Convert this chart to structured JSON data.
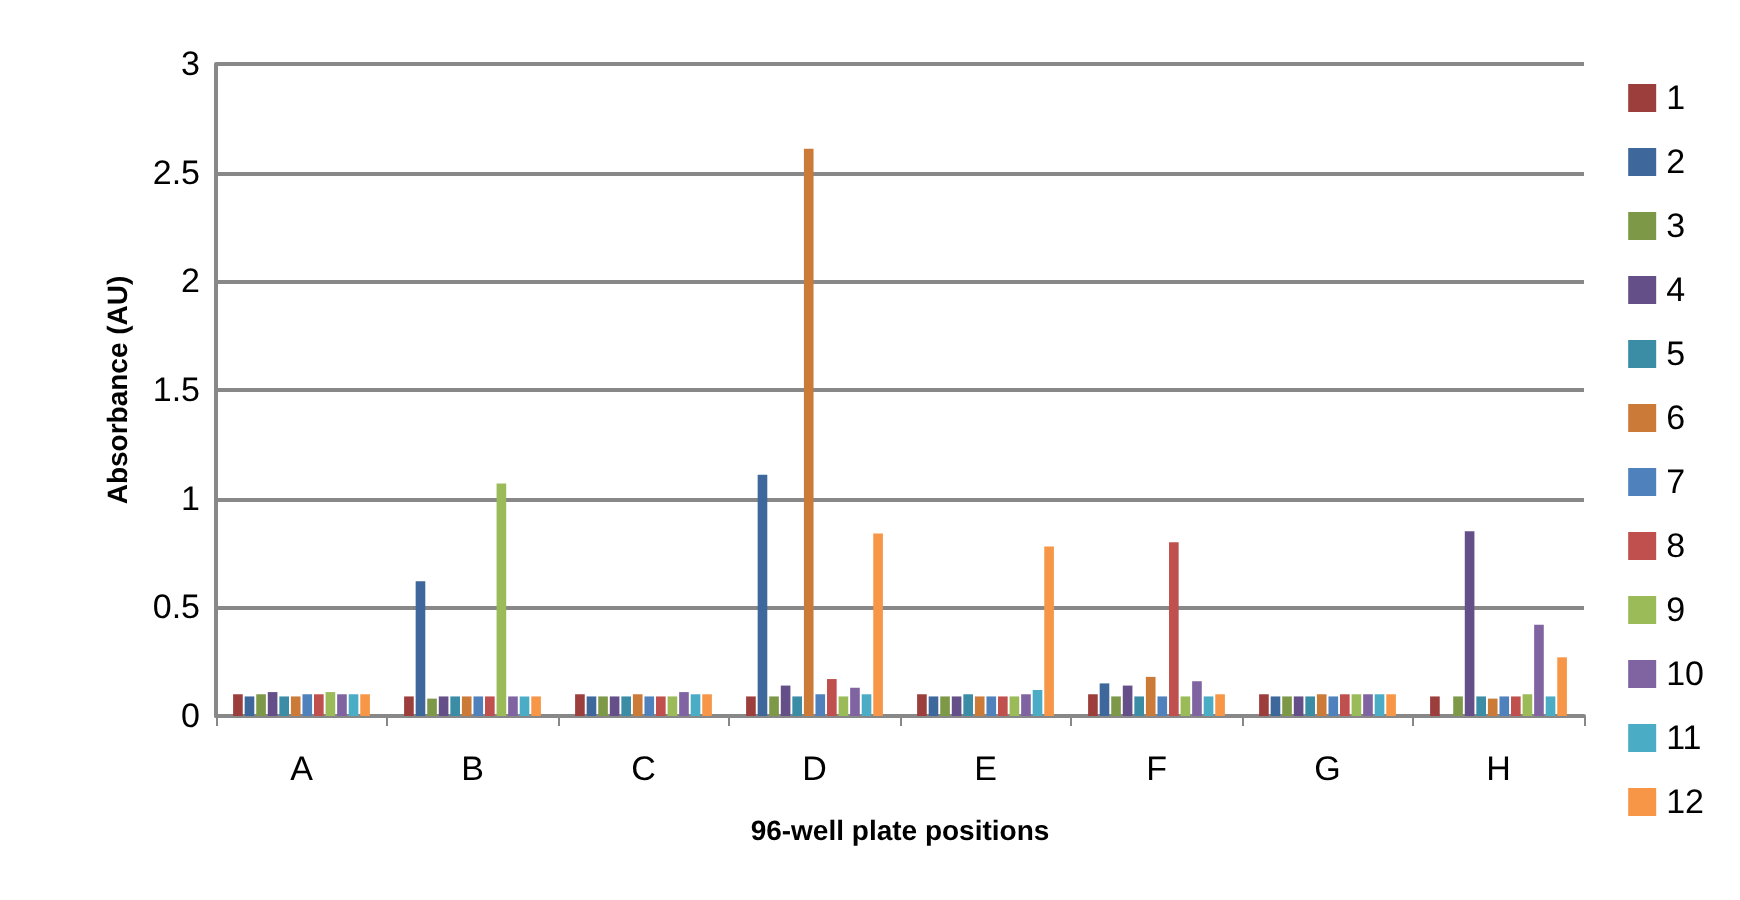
{
  "chart_data": {
    "type": "bar",
    "xlabel": "96-well plate positions",
    "ylabel": "Absorbance (AU)",
    "categories": [
      "A",
      "B",
      "C",
      "D",
      "E",
      "F",
      "G",
      "H"
    ],
    "ylim": [
      0,
      3
    ],
    "yticks": [
      0,
      0.5,
      1,
      1.5,
      2,
      2.5,
      3
    ],
    "grid": "y",
    "legend": "right",
    "series": [
      {
        "name": "1",
        "color": "#9c3e3b",
        "values": [
          0.1,
          0.09,
          0.1,
          0.09,
          0.1,
          0.1,
          0.1,
          0.09
        ]
      },
      {
        "name": "2",
        "color": "#3e679c",
        "values": [
          0.09,
          0.62,
          0.09,
          1.11,
          0.09,
          0.15,
          0.09,
          null
        ]
      },
      {
        "name": "3",
        "color": "#7d9847",
        "values": [
          0.1,
          0.08,
          0.09,
          0.09,
          0.09,
          0.09,
          0.09,
          0.09
        ]
      },
      {
        "name": "4",
        "color": "#654f88",
        "values": [
          0.11,
          0.09,
          0.09,
          0.14,
          0.09,
          0.14,
          0.09,
          0.85
        ]
      },
      {
        "name": "5",
        "color": "#3a8da5",
        "values": [
          0.09,
          0.09,
          0.09,
          0.09,
          0.1,
          0.09,
          0.09,
          0.09
        ]
      },
      {
        "name": "6",
        "color": "#cc7a38",
        "values": [
          0.09,
          0.09,
          0.1,
          2.61,
          0.09,
          0.18,
          0.1,
          0.08
        ]
      },
      {
        "name": "7",
        "color": "#4f81bd",
        "values": [
          0.1,
          0.09,
          0.09,
          0.1,
          0.09,
          0.09,
          0.09,
          0.09
        ]
      },
      {
        "name": "8",
        "color": "#c0504d",
        "values": [
          0.1,
          0.09,
          0.09,
          0.17,
          0.09,
          0.8,
          0.1,
          0.09
        ]
      },
      {
        "name": "9",
        "color": "#9bbb59",
        "values": [
          0.11,
          1.07,
          0.09,
          0.09,
          0.09,
          0.09,
          0.1,
          0.1
        ]
      },
      {
        "name": "10",
        "color": "#8064a2",
        "values": [
          0.1,
          0.09,
          0.11,
          0.13,
          0.1,
          0.16,
          0.1,
          0.42
        ]
      },
      {
        "name": "11",
        "color": "#4bacc6",
        "values": [
          0.1,
          0.09,
          0.1,
          0.1,
          0.12,
          0.09,
          0.1,
          0.09
        ]
      },
      {
        "name": "12",
        "color": "#f79646",
        "values": [
          0.1,
          0.09,
          0.1,
          0.84,
          0.78,
          0.1,
          0.1,
          0.27
        ]
      }
    ]
  }
}
